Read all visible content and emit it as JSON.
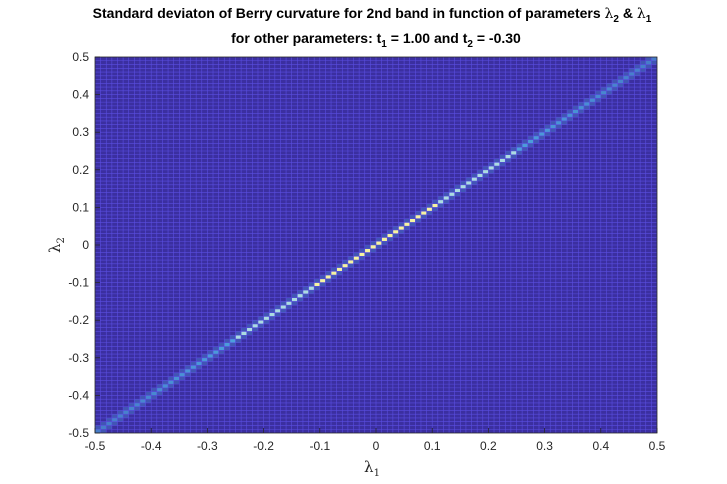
{
  "chart_data": {
    "type": "heatmap",
    "title_line1": "Standard deviaton of Berry curvature for 2nd band in function of parameters ",
    "title_lambda_a": "λ",
    "title_lambda_a_sub": "2",
    "title_amp": " & ",
    "title_lambda_b": "λ",
    "title_lambda_b_sub": "1",
    "title_line2_prefix": "for other parameters: t",
    "title_t1_sub": "1",
    "title_t1_rest": " = 1.00 and t",
    "title_t2_sub": "2",
    "title_t2_rest": " = -0.30",
    "xlabel": "λ",
    "xlabel_sub": "1",
    "ylabel": "λ",
    "ylabel_sub": "2",
    "xlim": [
      -0.5,
      0.5
    ],
    "ylim": [
      -0.5,
      0.5
    ],
    "xticks": [
      "-0.5",
      "-0.4",
      "-0.3",
      "-0.2",
      "-0.1",
      "0",
      "0.1",
      "0.2",
      "0.3",
      "0.4",
      "0.5"
    ],
    "yticks": [
      "-0.5",
      "-0.4",
      "-0.3",
      "-0.2",
      "-0.1",
      "0",
      "0.1",
      "0.2",
      "0.3",
      "0.4",
      "0.5"
    ],
    "grid_resolution": 100,
    "background_color": "#3b2fa0",
    "grid_line_color": "#5a4ee0",
    "peak_feature": "diagonal ridge along λ2 = λ1, brightest near origin",
    "peak_colors": [
      "#52c6f0",
      "#b8f0e8",
      "#ffffa0"
    ]
  }
}
